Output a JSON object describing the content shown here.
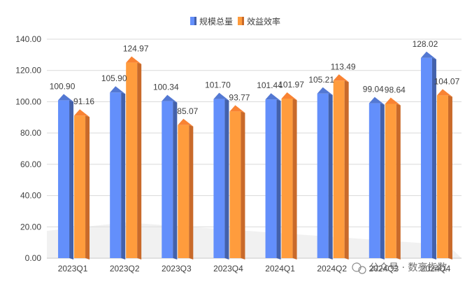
{
  "chart_data": {
    "type": "bar",
    "categories": [
      "2023Q1",
      "2023Q2",
      "2023Q3",
      "2023Q4",
      "2024Q1",
      "2024Q2",
      "2024Q3",
      "2024Q4"
    ],
    "series": [
      {
        "name": "规模总量",
        "values": [
          100.9,
          105.9,
          100.34,
          101.7,
          101.44,
          105.21,
          99.04,
          128.02
        ],
        "labels": [
          "100.90",
          "105.90",
          "100.34",
          "101.70",
          "101.44",
          "105.21",
          "99.04",
          "128.02"
        ],
        "color": "#4f72c9"
      },
      {
        "name": "效益效率",
        "values": [
          91.16,
          124.97,
          85.07,
          93.77,
          101.97,
          113.49,
          98.64,
          104.07
        ],
        "labels": [
          "91.16",
          "124.97",
          "85.07",
          "93.77",
          "101.97",
          "113.49",
          "98.64",
          "104.07"
        ],
        "color": "#ed7d31"
      }
    ],
    "ylim": [
      0,
      140
    ],
    "yticks": [
      "0.00",
      "20.00",
      "40.00",
      "60.00",
      "80.00",
      "100.00",
      "120.00",
      "140.00"
    ],
    "grid": true,
    "legend": "top-center"
  },
  "watermark": {
    "text": "公众号 · 数亮指数",
    "icon": "wechat-icon"
  }
}
